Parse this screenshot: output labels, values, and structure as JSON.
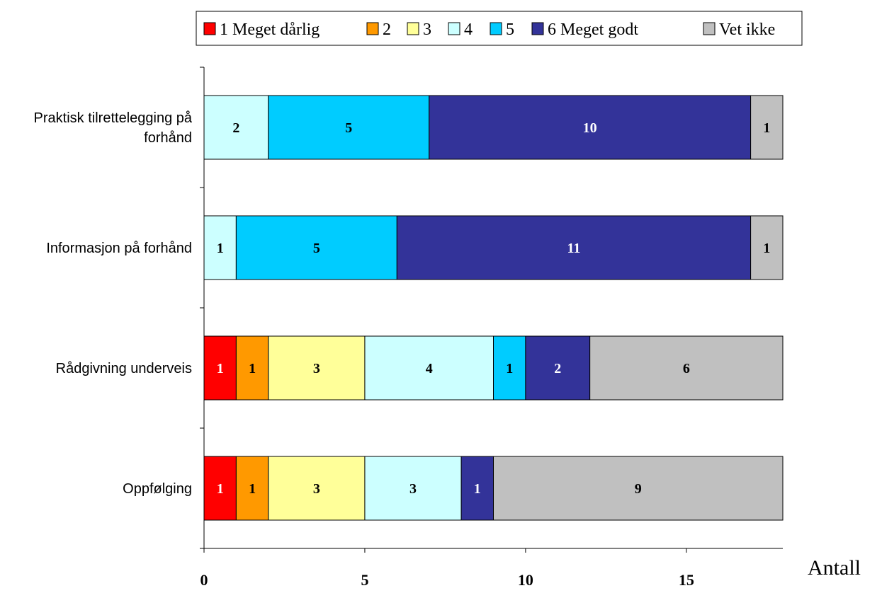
{
  "chart_data": {
    "type": "bar",
    "orientation": "horizontal",
    "stacked": true,
    "categories": [
      "Praktisk tilrettelegging på forhånd",
      "Informasjon på forhånd",
      "Rådgivning underveis",
      "Oppfølging"
    ],
    "category_lines": [
      [
        "Praktisk tilrettelegging på",
        "forhånd"
      ],
      [
        "Informasjon på forhånd"
      ],
      [
        "Rådgivning underveis"
      ],
      [
        "Oppfølging"
      ]
    ],
    "series": [
      {
        "name": "1 Meget dårlig",
        "color": "#ff0000",
        "label_color": "#ffffff",
        "values": [
          0,
          0,
          1,
          1
        ]
      },
      {
        "name": "2",
        "color": "#ff9900",
        "label_color": "#000000",
        "values": [
          0,
          0,
          1,
          1
        ]
      },
      {
        "name": "3",
        "color": "#ffff99",
        "label_color": "#000000",
        "values": [
          0,
          0,
          3,
          3
        ]
      },
      {
        "name": "4",
        "color": "#ccffff",
        "label_color": "#000000",
        "values": [
          2,
          1,
          4,
          3
        ]
      },
      {
        "name": "5",
        "color": "#00ccff",
        "label_color": "#000000",
        "values": [
          5,
          5,
          1,
          0
        ]
      },
      {
        "name": "6 Meget godt",
        "color": "#333399",
        "label_color": "#ffffff",
        "values": [
          10,
          11,
          2,
          1
        ]
      },
      {
        "name": "Vet ikke",
        "color": "#c0c0c0",
        "label_color": "#000000",
        "values": [
          1,
          1,
          6,
          9
        ]
      }
    ],
    "xlim": [
      0,
      18
    ],
    "xticks": [
      0,
      5,
      10,
      15
    ],
    "xlabel": "Antall",
    "legend_position": "top",
    "grid": false
  }
}
